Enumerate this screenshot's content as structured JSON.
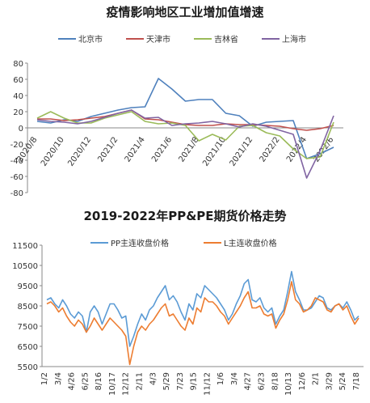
{
  "chart_data": [
    {
      "type": "line",
      "title": "疫情影响地区工业增加值增速",
      "ylim": [
        -80,
        80
      ],
      "yticks": [
        -80,
        -60,
        -40,
        -20,
        0,
        20,
        40,
        60,
        80
      ],
      "x": [
        "2020/8",
        "2020/9",
        "2020/10",
        "2020/11",
        "2020/12",
        "2021/1",
        "2021/2",
        "2021/3",
        "2021/4",
        "2021/5",
        "2021/6",
        "2021/7",
        "2021/8",
        "2021/9",
        "2021/10",
        "2021/11",
        "2021/12",
        "2022/1",
        "2022/2",
        "2022/3",
        "2022/4",
        "2022/5",
        "2022/6"
      ],
      "xtick_labels": [
        "2020/8",
        "2020/10",
        "2020/12",
        "2021/2",
        "2021/4",
        "2021/6",
        "2021/8",
        "2021/10",
        "2021/12",
        "2022/2",
        "2022/4",
        "2022/6"
      ],
      "legend_position": "top",
      "grid": false,
      "series": [
        {
          "name": "北京市",
          "color": "#4f81bd",
          "values": [
            8,
            6,
            10,
            8,
            14,
            18,
            22,
            25,
            26,
            61,
            48,
            33,
            35,
            35,
            18,
            15,
            2,
            7,
            8,
            9,
            -38,
            -32,
            -24
          ]
        },
        {
          "name": "天津市",
          "color": "#c0504d",
          "values": [
            11,
            11,
            9,
            10,
            12,
            14,
            18,
            22,
            11,
            10,
            7,
            4,
            3,
            3,
            5,
            4,
            4,
            3,
            2,
            -1,
            -3,
            -1,
            3
          ]
        },
        {
          "name": "吉林省",
          "color": "#9bbb59",
          "values": [
            12,
            20,
            12,
            6,
            6,
            12,
            16,
            20,
            8,
            5,
            6,
            3,
            -16,
            -8,
            -15,
            2,
            3,
            -6,
            -10,
            -26,
            -38,
            -36,
            7
          ]
        },
        {
          "name": "上海市",
          "color": "#8064a2",
          "values": [
            10,
            8,
            7,
            5,
            8,
            13,
            18,
            22,
            12,
            13,
            3,
            5,
            6,
            8,
            5,
            1,
            5,
            2,
            -3,
            -8,
            -62,
            -28,
            15
          ]
        }
      ]
    },
    {
      "type": "line",
      "title": "2019-2022年PP&PE期货价格走势",
      "ylim": [
        5500,
        11500
      ],
      "yticks": [
        5500,
        6500,
        7500,
        8500,
        9500,
        10500,
        11500
      ],
      "xtick_labels": [
        "1/2",
        "3/4",
        "4/26",
        "6/25",
        "8/16",
        "10/17",
        "12/12",
        "2/11",
        "4/3",
        "5/29",
        "7/23",
        "9/15",
        "11/12",
        "1/6",
        "3/4",
        "4/27",
        "6/23",
        "8/18",
        "10/13",
        "12/6",
        "2/1",
        "3/29",
        "5/24",
        "7/18"
      ],
      "legend_position": "top",
      "grid": false,
      "series": [
        {
          "name": "PP主连收盘价格",
          "color": "#5b9bd5",
          "values": [
            8800,
            8900,
            8600,
            8400,
            8800,
            8500,
            8100,
            7900,
            8200,
            8000,
            7200,
            8200,
            8500,
            8200,
            7600,
            8100,
            8600,
            8600,
            8300,
            7900,
            8000,
            6500,
            7000,
            7600,
            8100,
            7800,
            8300,
            8500,
            8900,
            9200,
            9500,
            8800,
            9000,
            8700,
            8200,
            7800,
            8600,
            8300,
            9100,
            8900,
            9500,
            9300,
            9100,
            8900,
            8600,
            8300,
            7800,
            8100,
            8600,
            9000,
            9600,
            9800,
            8800,
            8700,
            8900,
            8400,
            8200,
            8400,
            7600,
            8000,
            8300,
            9200,
            10200,
            9200,
            8800,
            8300,
            8300,
            8400,
            8700,
            9000,
            8900,
            8400,
            8300,
            8500,
            8600,
            8400,
            8700,
            8300,
            7800,
            8000
          ]
        },
        {
          "name": "L主连收盘价格",
          "color": "#ed7d31",
          "values": [
            8600,
            8700,
            8500,
            8200,
            8400,
            8000,
            7700,
            7500,
            7800,
            7600,
            7200,
            7500,
            7900,
            7600,
            7300,
            7600,
            7900,
            7700,
            7500,
            7300,
            7000,
            5600,
            6500,
            7200,
            7500,
            7300,
            7600,
            7800,
            8100,
            8400,
            8600,
            8000,
            8100,
            7800,
            7500,
            7300,
            7900,
            7600,
            8400,
            8200,
            8900,
            8700,
            8700,
            8500,
            8200,
            8000,
            7600,
            7900,
            8200,
            8500,
            8900,
            9200,
            8400,
            8400,
            8500,
            8100,
            8000,
            8100,
            7400,
            7800,
            8100,
            8800,
            9700,
            8800,
            8600,
            8200,
            8300,
            8500,
            8900,
            8800,
            8700,
            8300,
            8200,
            8500,
            8600,
            8300,
            8500,
            8000,
            7600,
            7900
          ]
        }
      ]
    }
  ]
}
